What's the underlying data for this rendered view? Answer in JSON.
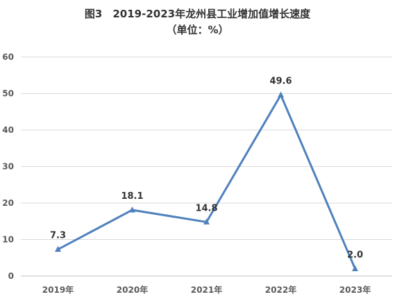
{
  "chart_data": {
    "type": "line",
    "title": "图3　2019-2023年龙州县工业增加值增长速度",
    "subtitle": "（单位：%）",
    "categories": [
      "2019年",
      "2020年",
      "2021年",
      "2022年",
      "2023年"
    ],
    "series": [
      {
        "values": [
          7.3,
          18.1,
          14.8,
          49.6,
          2.0
        ],
        "color": "#4F81BD"
      }
    ],
    "data_labels": [
      "7.3",
      "18.1",
      "14.8",
      "49.6",
      "2.0"
    ],
    "ylim": [
      0,
      60
    ],
    "yticks": [
      0,
      10,
      20,
      30,
      40,
      50,
      60
    ],
    "grid": true,
    "gridcolor": "#D9D9D9",
    "marker": "triangle",
    "legend": "none"
  }
}
